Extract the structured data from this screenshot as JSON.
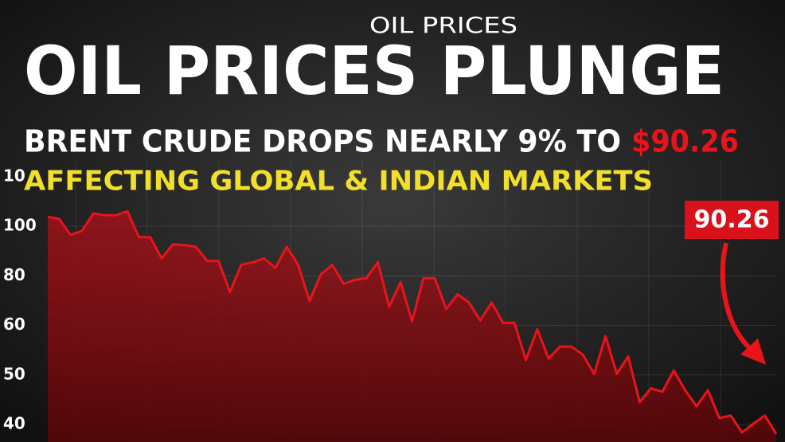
{
  "kicker": "OIL PRICES",
  "headline": "OIL PRICES PLUNGE",
  "subhead": {
    "text": "BRENT CRUDE DROPS NEARLY 9% TO",
    "highlight": "$90.26"
  },
  "tagline": "AFFECTING GLOBAL & INDIAN MARKETS",
  "chart_data": {
    "type": "line",
    "values": [
      103.8,
      102.9,
      96.5,
      98.1,
      105.1,
      104.4,
      104.4,
      106.0,
      95.6,
      95.6,
      87.0,
      92.7,
      92.4,
      91.7,
      86.0,
      86.0,
      73.4,
      84.4,
      85.4,
      87.0,
      83.2,
      91.7,
      84.4,
      69.8,
      80.6,
      84.4,
      76.7,
      78.4,
      79.0,
      85.4,
      67.5,
      77.4,
      61.6,
      79.0,
      79.0,
      66.6,
      72.5,
      69.2,
      62.0,
      69.2,
      61.0,
      61.0,
      53.0,
      59.2,
      53.3,
      55.7,
      55.7,
      54.1,
      50.2,
      57.8,
      50.2,
      53.7,
      44.5,
      47.3,
      46.6,
      50.9,
      46.9,
      43.7,
      46.9,
      41.3,
      41.8,
      38.4,
      40.2,
      41.8,
      38.1
    ],
    "color": "#e8141c",
    "ylim": [
      36,
      120
    ],
    "yticks": [
      100,
      80,
      60,
      50,
      40
    ],
    "cropped_tick_label": "10",
    "callout": "90.26",
    "grid": true
  }
}
